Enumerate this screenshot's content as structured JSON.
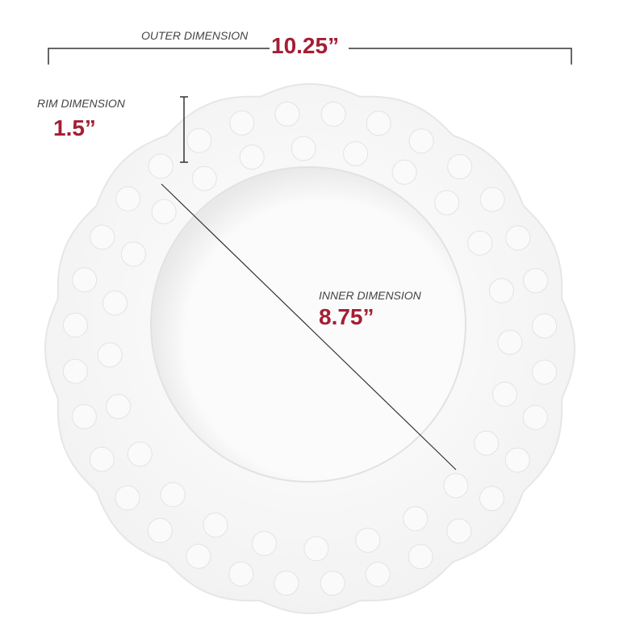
{
  "outer": {
    "label": "OUTER DIMENSION",
    "value": "10.25”"
  },
  "rim": {
    "label": "RIM DIMENSION",
    "value": "1.5”"
  },
  "inner": {
    "label": "INNER DIMENSION",
    "value": "8.75”"
  }
}
